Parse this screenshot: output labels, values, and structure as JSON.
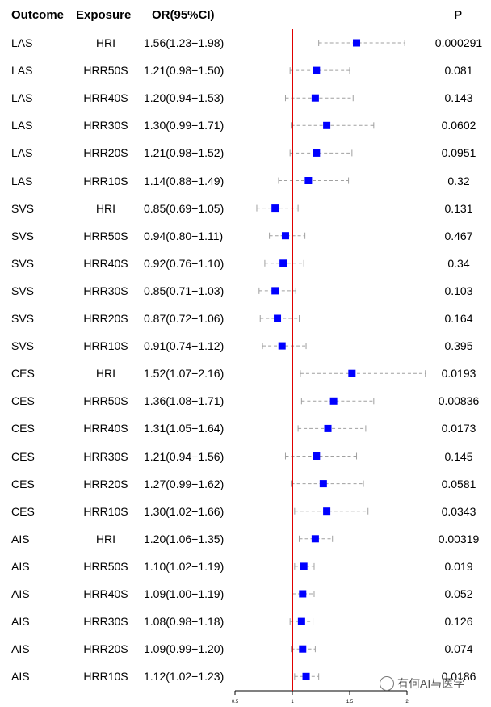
{
  "headers": {
    "outcome": "Outcome",
    "exposure": "Exposure",
    "or": "OR(95%CI)",
    "p": "P"
  },
  "chart_data": {
    "type": "forest",
    "reference_line": 1,
    "xlim": [
      0.5,
      2
    ],
    "x_ticks": [
      "0.5",
      "1",
      "1.5",
      "2"
    ],
    "colors": {
      "marker": "#0000ff",
      "reference": "#e00000",
      "ci": "#a0a0a0",
      "axis": "#000000"
    },
    "rows": [
      {
        "outcome": "LAS",
        "exposure": "HRI",
        "or_text": "1.56(1.23−1.98)",
        "or": 1.56,
        "lo": 1.23,
        "hi": 1.98,
        "p": "0.000291"
      },
      {
        "outcome": "LAS",
        "exposure": "HRR50S",
        "or_text": "1.21(0.98−1.50)",
        "or": 1.21,
        "lo": 0.98,
        "hi": 1.5,
        "p": "0.081"
      },
      {
        "outcome": "LAS",
        "exposure": "HRR40S",
        "or_text": "1.20(0.94−1.53)",
        "or": 1.2,
        "lo": 0.94,
        "hi": 1.53,
        "p": "0.143"
      },
      {
        "outcome": "LAS",
        "exposure": "HRR30S",
        "or_text": "1.30(0.99−1.71)",
        "or": 1.3,
        "lo": 0.99,
        "hi": 1.71,
        "p": "0.0602"
      },
      {
        "outcome": "LAS",
        "exposure": "HRR20S",
        "or_text": "1.21(0.98−1.52)",
        "or": 1.21,
        "lo": 0.98,
        "hi": 1.52,
        "p": "0.0951"
      },
      {
        "outcome": "LAS",
        "exposure": "HRR10S",
        "or_text": "1.14(0.88−1.49)",
        "or": 1.14,
        "lo": 0.88,
        "hi": 1.49,
        "p": "0.32"
      },
      {
        "outcome": "SVS",
        "exposure": "HRI",
        "or_text": "0.85(0.69−1.05)",
        "or": 0.85,
        "lo": 0.69,
        "hi": 1.05,
        "p": "0.131"
      },
      {
        "outcome": "SVS",
        "exposure": "HRR50S",
        "or_text": "0.94(0.80−1.11)",
        "or": 0.94,
        "lo": 0.8,
        "hi": 1.11,
        "p": "0.467"
      },
      {
        "outcome": "SVS",
        "exposure": "HRR40S",
        "or_text": "0.92(0.76−1.10)",
        "or": 0.92,
        "lo": 0.76,
        "hi": 1.1,
        "p": "0.34"
      },
      {
        "outcome": "SVS",
        "exposure": "HRR30S",
        "or_text": "0.85(0.71−1.03)",
        "or": 0.85,
        "lo": 0.71,
        "hi": 1.03,
        "p": "0.103"
      },
      {
        "outcome": "SVS",
        "exposure": "HRR20S",
        "or_text": "0.87(0.72−1.06)",
        "or": 0.87,
        "lo": 0.72,
        "hi": 1.06,
        "p": "0.164"
      },
      {
        "outcome": "SVS",
        "exposure": "HRR10S",
        "or_text": "0.91(0.74−1.12)",
        "or": 0.91,
        "lo": 0.74,
        "hi": 1.12,
        "p": "0.395"
      },
      {
        "outcome": "CES",
        "exposure": "HRI",
        "or_text": "1.52(1.07−2.16)",
        "or": 1.52,
        "lo": 1.07,
        "hi": 2.16,
        "p": "0.0193"
      },
      {
        "outcome": "CES",
        "exposure": "HRR50S",
        "or_text": "1.36(1.08−1.71)",
        "or": 1.36,
        "lo": 1.08,
        "hi": 1.71,
        "p": "0.00836"
      },
      {
        "outcome": "CES",
        "exposure": "HRR40S",
        "or_text": "1.31(1.05−1.64)",
        "or": 1.31,
        "lo": 1.05,
        "hi": 1.64,
        "p": "0.0173"
      },
      {
        "outcome": "CES",
        "exposure": "HRR30S",
        "or_text": "1.21(0.94−1.56)",
        "or": 1.21,
        "lo": 0.94,
        "hi": 1.56,
        "p": "0.145"
      },
      {
        "outcome": "CES",
        "exposure": "HRR20S",
        "or_text": "1.27(0.99−1.62)",
        "or": 1.27,
        "lo": 0.99,
        "hi": 1.62,
        "p": "0.0581"
      },
      {
        "outcome": "CES",
        "exposure": "HRR10S",
        "or_text": "1.30(1.02−1.66)",
        "or": 1.3,
        "lo": 1.02,
        "hi": 1.66,
        "p": "0.0343"
      },
      {
        "outcome": "AIS",
        "exposure": "HRI",
        "or_text": "1.20(1.06−1.35)",
        "or": 1.2,
        "lo": 1.06,
        "hi": 1.35,
        "p": "0.00319"
      },
      {
        "outcome": "AIS",
        "exposure": "HRR50S",
        "or_text": "1.10(1.02−1.19)",
        "or": 1.1,
        "lo": 1.02,
        "hi": 1.19,
        "p": "0.019"
      },
      {
        "outcome": "AIS",
        "exposure": "HRR40S",
        "or_text": "1.09(1.00−1.19)",
        "or": 1.09,
        "lo": 1.0,
        "hi": 1.19,
        "p": "0.052"
      },
      {
        "outcome": "AIS",
        "exposure": "HRR30S",
        "or_text": "1.08(0.98−1.18)",
        "or": 1.08,
        "lo": 0.98,
        "hi": 1.18,
        "p": "0.126"
      },
      {
        "outcome": "AIS",
        "exposure": "HRR20S",
        "or_text": "1.09(0.99−1.20)",
        "or": 1.09,
        "lo": 0.99,
        "hi": 1.2,
        "p": "0.074"
      },
      {
        "outcome": "AIS",
        "exposure": "HRR10S",
        "or_text": "1.12(1.02−1.23)",
        "or": 1.12,
        "lo": 1.02,
        "hi": 1.23,
        "p": "0.0186"
      }
    ]
  },
  "watermark": {
    "text": "有何AI与医学",
    "icon": "wechat-icon"
  }
}
